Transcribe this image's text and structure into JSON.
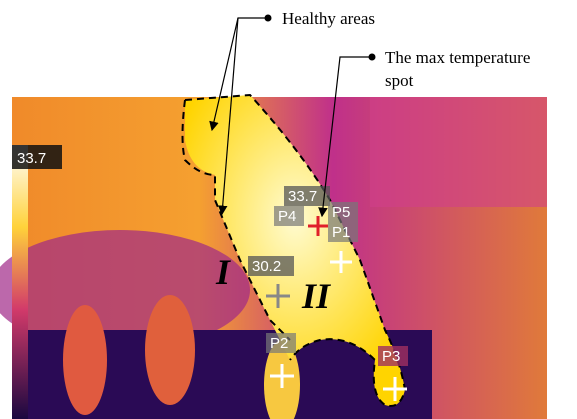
{
  "annotations": {
    "healthy": "Healthy areas",
    "max_spot": [
      "The max temperature",
      "spot"
    ]
  },
  "scale_max": "33.7",
  "readings": {
    "max": "33.7",
    "second": "30.2"
  },
  "points": [
    "P4",
    "P5",
    "P1",
    "P2",
    "P3"
  ],
  "regions": [
    "I",
    "II"
  ]
}
